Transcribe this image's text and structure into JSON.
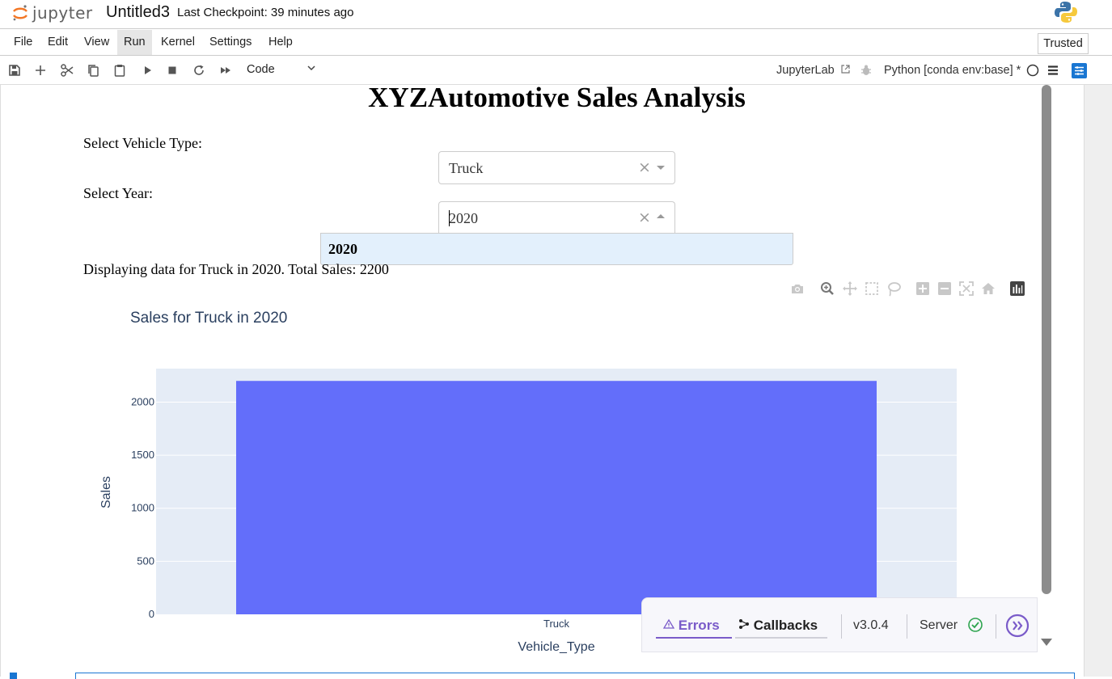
{
  "header": {
    "logo_text": "jupyter",
    "notebook_title": "Untitled3",
    "checkpoint": "Last Checkpoint: 39 minutes ago"
  },
  "menu": {
    "items": [
      "File",
      "Edit",
      "View",
      "Run",
      "Kernel",
      "Settings",
      "Help"
    ],
    "active": "Run",
    "trusted_label": "Trusted"
  },
  "toolbar": {
    "cell_type": "Code",
    "jupyterlab_link": "JupyterLab",
    "kernel": "Python [conda env:base] *"
  },
  "app": {
    "title": "XYZAutomotive Sales Analysis",
    "vehicle_label": "Select Vehicle Type:",
    "vehicle_value": "Truck",
    "year_label": "Select Year:",
    "year_value": "2020",
    "year_options": [
      "2020"
    ],
    "clear_symbol": "×",
    "status": "Displaying data for Truck in 2020. Total Sales: 2200"
  },
  "chart_data": {
    "type": "bar",
    "title": "Sales for Truck in 2020",
    "xlabel": "Vehicle_Type",
    "ylabel": "Sales",
    "categories": [
      "Truck"
    ],
    "values": [
      2200
    ],
    "ylim": [
      0,
      2316
    ],
    "yticks": [
      0,
      500,
      1000,
      1500,
      2000
    ],
    "bar_color": "#636efa",
    "plot_bg": "#e5ecf6",
    "grid": true
  },
  "devtools": {
    "errors_label": "Errors",
    "callbacks_label": "Callbacks",
    "version": "v3.0.4",
    "server_label": "Server",
    "accent": "#7a5bc9",
    "ok_color": "#2ea44f"
  }
}
